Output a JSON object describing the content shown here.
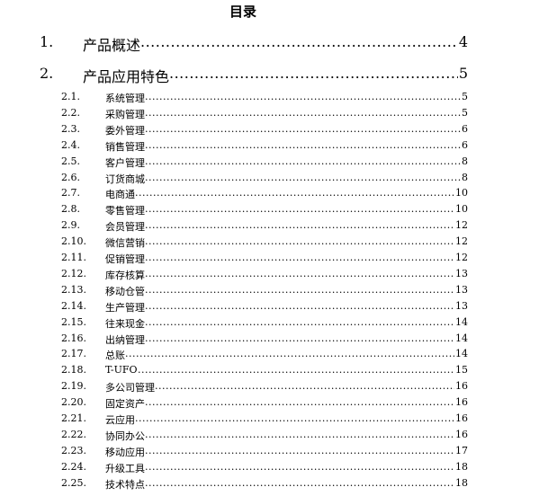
{
  "title": "目录",
  "level1": [
    {
      "num": "1.",
      "text": "产品概述",
      "page": "4"
    },
    {
      "num": "2.",
      "text": "产品应用特色",
      "page": "5"
    }
  ],
  "level2": [
    {
      "num": "2.1.",
      "text": "系统管理",
      "page": "5"
    },
    {
      "num": "2.2.",
      "text": "采购管理",
      "page": "5"
    },
    {
      "num": "2.3.",
      "text": "委外管理",
      "page": "6"
    },
    {
      "num": "2.4.",
      "text": "销售管理",
      "page": "6"
    },
    {
      "num": "2.5.",
      "text": "客户管理",
      "page": "8"
    },
    {
      "num": "2.6.",
      "text": "订货商城",
      "page": "8"
    },
    {
      "num": "2.7.",
      "text": "电商通",
      "page": "10"
    },
    {
      "num": "2.8.",
      "text": "零售管理",
      "page": "10"
    },
    {
      "num": "2.9.",
      "text": "会员管理",
      "page": "12"
    },
    {
      "num": "2.10.",
      "text": "微信营销",
      "page": "12"
    },
    {
      "num": "2.11.",
      "text": "促销管理",
      "page": "12"
    },
    {
      "num": "2.12.",
      "text": "库存核算",
      "page": "13"
    },
    {
      "num": "2.13.",
      "text": "移动仓管",
      "page": "13"
    },
    {
      "num": "2.14.",
      "text": "生产管理",
      "page": "13"
    },
    {
      "num": "2.15.",
      "text": "往来现金",
      "page": "14"
    },
    {
      "num": "2.16.",
      "text": "出纳管理",
      "page": "14"
    },
    {
      "num": "2.17.",
      "text": "总账",
      "page": "14"
    },
    {
      "num": "2.18.",
      "text": "T-UFO",
      "page": "15"
    },
    {
      "num": "2.19.",
      "text": "多公司管理",
      "page": "16"
    },
    {
      "num": "2.20.",
      "text": "固定资产",
      "page": "16"
    },
    {
      "num": "2.21.",
      "text": "云应用",
      "page": "16"
    },
    {
      "num": "2.22.",
      "text": "协同办公",
      "page": "16"
    },
    {
      "num": "2.23.",
      "text": "移动应用",
      "page": "17"
    },
    {
      "num": "2.24.",
      "text": "升级工具",
      "page": "18"
    },
    {
      "num": "2.25.",
      "text": "技术特点",
      "page": "18"
    }
  ]
}
